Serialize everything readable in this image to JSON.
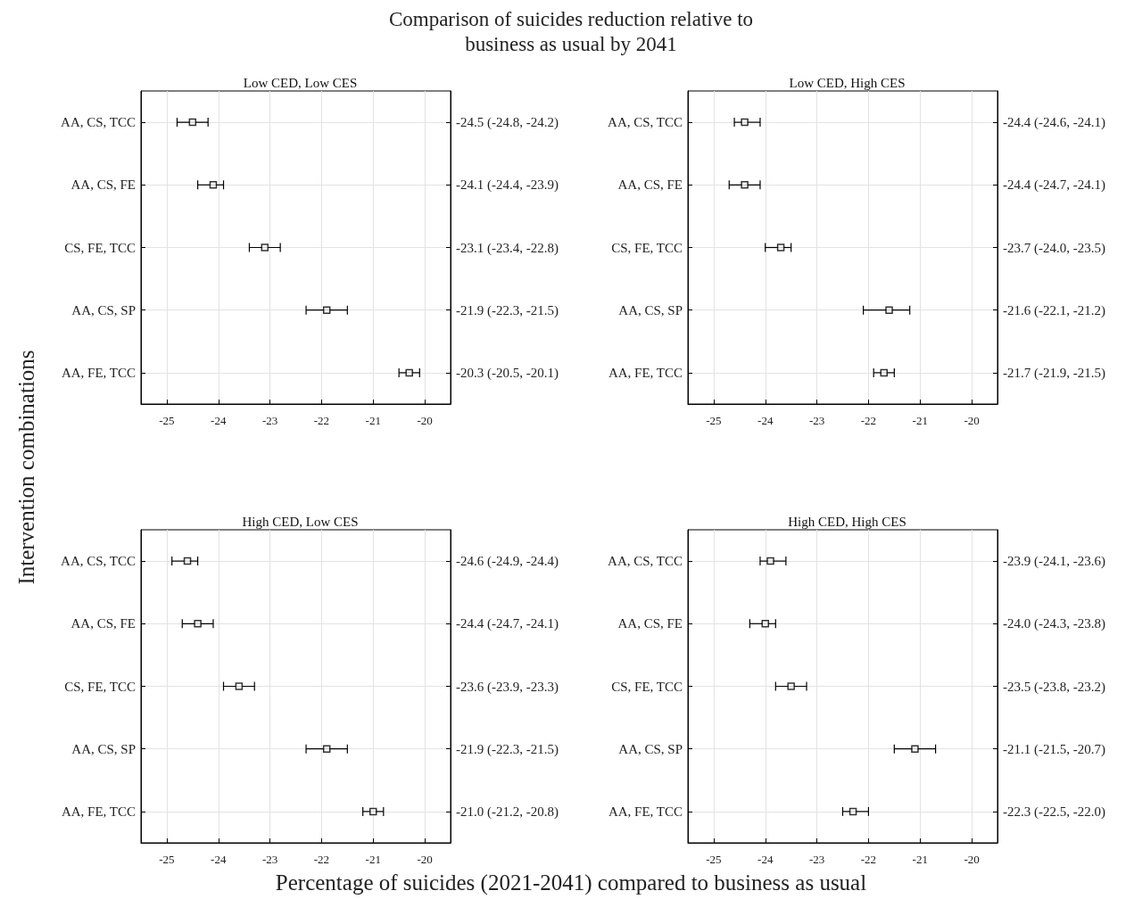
{
  "chart_data": [
    {
      "type": "scatter",
      "orientation": "horizontal",
      "title": "Low CED, Low CES",
      "annotations": [
        "Comparison of suicides reduction relative to business as usual by 2041"
      ],
      "ylabel": "Intervention combinations",
      "categories": [
        "AA, CS, TCC",
        "AA, CS, FE",
        "CS, FE, TCC",
        "AA, CS, SP",
        "AA, FE, TCC"
      ],
      "values": [
        -24.5,
        -24.1,
        -23.1,
        -21.9,
        -20.3
      ],
      "errors": [
        [
          -24.8,
          -24.2
        ],
        [
          -24.4,
          -23.9
        ],
        [
          -23.4,
          -22.8
        ],
        [
          -22.3,
          -21.5
        ],
        [
          -20.5,
          -20.1
        ]
      ],
      "value_labels": [
        "-24.5 (-24.8, -24.2)",
        "-24.1 (-24.4, -23.9)",
        "-23.1 (-23.4, -22.8)",
        "-21.9 (-22.3, -21.5)",
        "-20.3 (-20.5, -20.1)"
      ],
      "color": "#000000",
      "marker": "square",
      "xlim": [
        -25.5,
        -19.5
      ],
      "xticks": [
        -25,
        -24,
        -23,
        -22,
        -21,
        -20
      ],
      "grid": true
    },
    {
      "type": "scatter",
      "orientation": "horizontal",
      "title": "Low CED, High CES",
      "categories": [
        "AA, CS, TCC",
        "AA, CS, FE",
        "CS, FE, TCC",
        "AA, CS, SP",
        "AA, FE, TCC"
      ],
      "values": [
        -24.4,
        -24.4,
        -23.7,
        -21.6,
        -21.7
      ],
      "errors": [
        [
          -24.6,
          -24.1
        ],
        [
          -24.7,
          -24.1
        ],
        [
          -24.0,
          -23.5
        ],
        [
          -22.1,
          -21.2
        ],
        [
          -21.9,
          -21.5
        ]
      ],
      "value_labels": [
        "-24.4 (-24.6, -24.1)",
        "-24.4 (-24.7, -24.1)",
        "-23.7 (-24.0, -23.5)",
        "-21.6 (-22.1, -21.2)",
        "-21.7 (-21.9, -21.5)"
      ],
      "color": "#000000",
      "marker": "square",
      "xlim": [
        -25.5,
        -19.5
      ],
      "xticks": [
        -25,
        -24,
        -23,
        -22,
        -21,
        -20
      ],
      "grid": true
    },
    {
      "type": "scatter",
      "orientation": "horizontal",
      "title": "High CED, Low CES",
      "xlabel": "Percentage of suicides (2021-2041) compared to business as usual",
      "categories": [
        "AA, CS, TCC",
        "AA, CS, FE",
        "CS, FE, TCC",
        "AA, CS, SP",
        "AA, FE, TCC"
      ],
      "values": [
        -24.6,
        -24.4,
        -23.6,
        -21.9,
        -21.0
      ],
      "errors": [
        [
          -24.9,
          -24.4
        ],
        [
          -24.7,
          -24.1
        ],
        [
          -23.9,
          -23.3
        ],
        [
          -22.3,
          -21.5
        ],
        [
          -21.2,
          -20.8
        ]
      ],
      "value_labels": [
        "-24.6 (-24.9, -24.4)",
        "-24.4 (-24.7, -24.1)",
        "-23.6 (-23.9, -23.3)",
        "-21.9 (-22.3, -21.5)",
        "-21.0 (-21.2, -20.8)"
      ],
      "color": "#000000",
      "marker": "square",
      "xlim": [
        -25.5,
        -19.5
      ],
      "xticks": [
        -25,
        -24,
        -23,
        -22,
        -21,
        -20
      ],
      "grid": true
    },
    {
      "type": "scatter",
      "orientation": "horizontal",
      "title": "High CED, High CES",
      "categories": [
        "AA, CS, TCC",
        "AA, CS, FE",
        "CS, FE, TCC",
        "AA, CS, SP",
        "AA, FE, TCC"
      ],
      "values": [
        -23.9,
        -24.0,
        -23.5,
        -21.1,
        -22.3
      ],
      "errors": [
        [
          -24.1,
          -23.6
        ],
        [
          -24.3,
          -23.8
        ],
        [
          -23.8,
          -23.2
        ],
        [
          -21.5,
          -20.7
        ],
        [
          -22.5,
          -22.0
        ]
      ],
      "value_labels": [
        "-23.9 (-24.1, -23.6)",
        "-24.0 (-24.3, -23.8)",
        "-23.5 (-23.8, -23.2)",
        "-21.1 (-21.5, -20.7)",
        "-22.3 (-22.5, -22.0)"
      ],
      "color": "#000000",
      "marker": "square",
      "xlim": [
        -25.5,
        -19.5
      ],
      "xticks": [
        -25,
        -24,
        -23,
        -22,
        -21,
        -20
      ],
      "grid": true
    }
  ]
}
